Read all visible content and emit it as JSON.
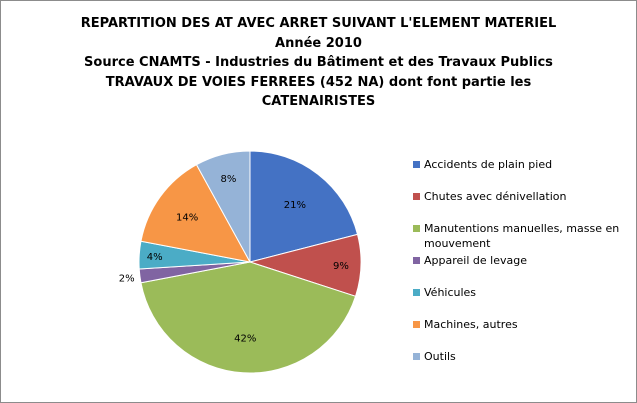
{
  "chart_data": {
    "type": "pie",
    "title_lines": [
      "REPARTITION DES AT AVEC ARRET SUIVANT L'ELEMENT MATERIEL",
      "Année 2010",
      "Source CNAMTS - Industries du Bâtiment et des Travaux Publics",
      "TRAVAUX DE VOIES FERREES (452 NA) dont font partie les",
      "CATENAIRISTES"
    ],
    "categories": [
      "Accidents de plain pied",
      "Chutes avec dénivellation",
      "Manutentions manuelles, masse en mouvement",
      "Appareil de levage",
      "Véhicules",
      "Machines, autres",
      "Outils"
    ],
    "values": [
      21,
      9,
      42,
      2,
      4,
      14,
      8
    ],
    "labels": [
      "21%",
      "9%",
      "42%",
      "2%",
      "4%",
      "14%",
      "8%"
    ],
    "colors": [
      "#4472c4",
      "#c0504d",
      "#9bbb59",
      "#8064a2",
      "#4bacc6",
      "#f79646",
      "#95b3d7"
    ],
    "legend_position": "right",
    "start_angle": "12 o'clock",
    "direction": "clockwise"
  }
}
